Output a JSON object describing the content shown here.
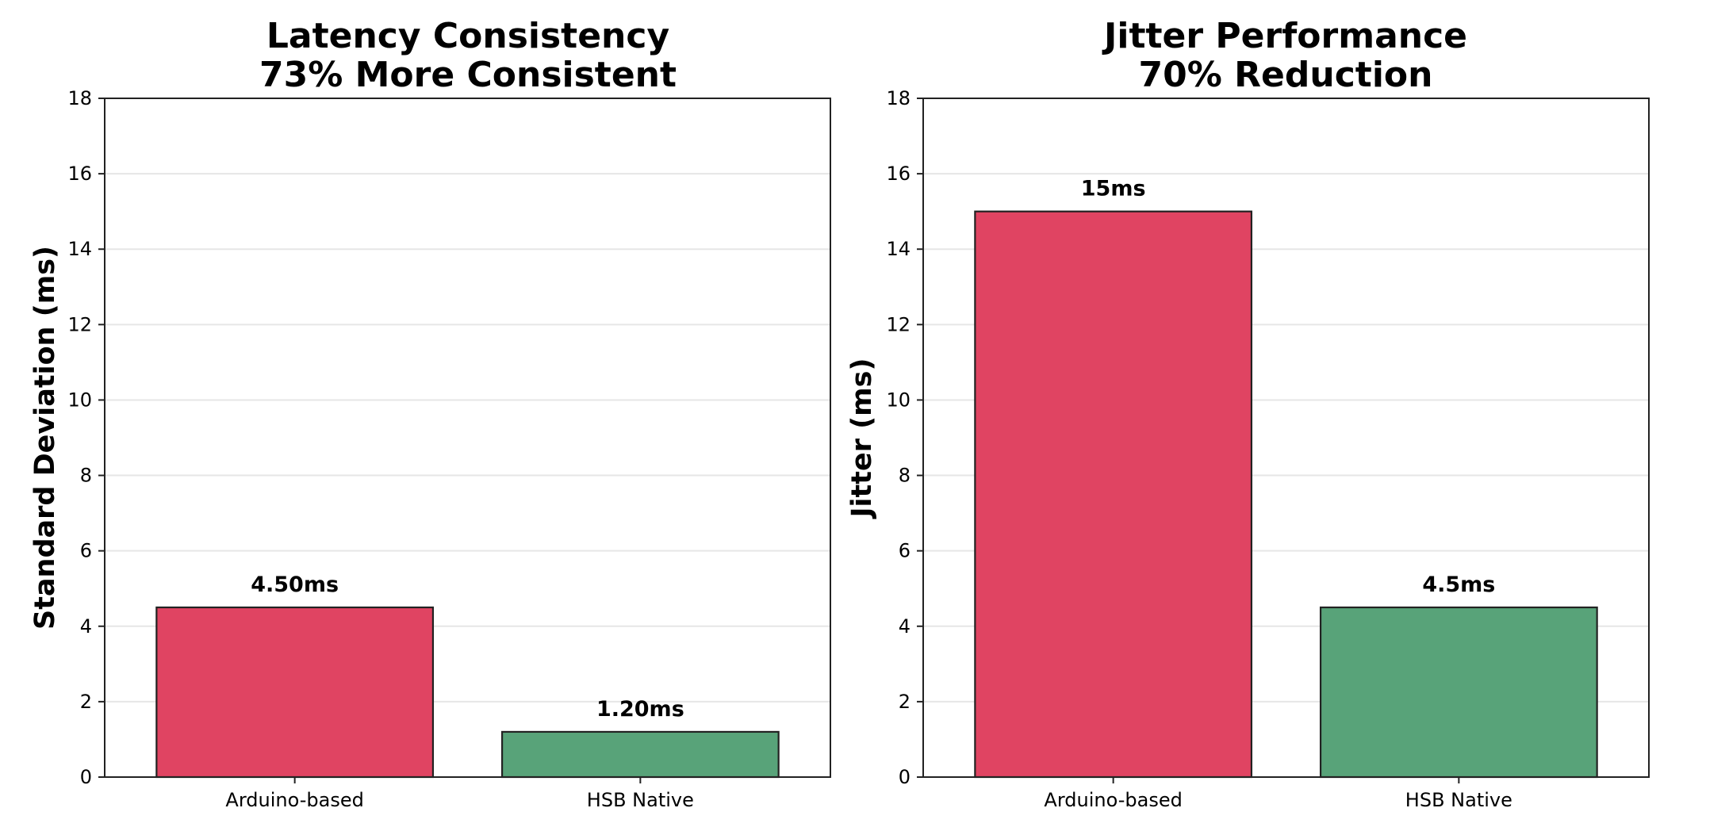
{
  "chart_data": [
    {
      "type": "bar",
      "title": [
        "Latency Consistency",
        "73% More Consistent"
      ],
      "xlabel": "",
      "ylabel": "Standard Deviation (ms)",
      "categories": [
        "Arduino-based",
        "HSB Native"
      ],
      "values": [
        4.5,
        1.2
      ],
      "data_labels": [
        "4.50ms",
        "1.20ms"
      ],
      "colors": [
        "#e04462",
        "#58a379"
      ],
      "ylim": [
        0,
        18
      ],
      "yticks": [
        0,
        2,
        4,
        6,
        8,
        10,
        12,
        14,
        16,
        18
      ],
      "grid": "y"
    },
    {
      "type": "bar",
      "title": [
        "Jitter Performance",
        "70% Reduction"
      ],
      "xlabel": "",
      "ylabel": "Jitter (ms)",
      "categories": [
        "Arduino-based",
        "HSB Native"
      ],
      "values": [
        15,
        4.5
      ],
      "data_labels": [
        "15ms",
        "4.5ms"
      ],
      "colors": [
        "#e04462",
        "#58a379"
      ],
      "ylim": [
        0,
        18
      ],
      "yticks": [
        0,
        2,
        4,
        6,
        8,
        10,
        12,
        14,
        16,
        18
      ],
      "grid": "y"
    }
  ]
}
